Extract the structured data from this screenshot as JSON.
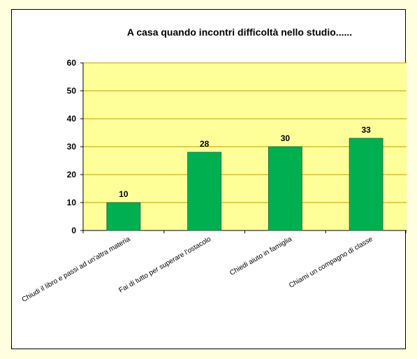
{
  "chart_data": {
    "type": "bar",
    "title": "A casa quando incontri difficoltà nello studio......",
    "xlabel": "",
    "ylabel": "",
    "categories": [
      "Chiudi il libro e passi ad un'altra materia",
      "Fai di tutto per superare l'ostacolo",
      "Chiedi aiuto in famiglia",
      "Chiami un compagno di classe"
    ],
    "values": [
      10,
      28,
      30,
      33
    ],
    "ylim": [
      0,
      60
    ],
    "yticks": [
      0,
      10,
      20,
      30,
      40,
      50,
      60
    ],
    "grid": true,
    "legend": "none",
    "colors": {
      "plot_background": "#ffff99",
      "bar_fill": "#00b050",
      "bar_stroke": "#1f5f3a",
      "gridline": "#b8a000",
      "page_background": "#ffffe0"
    }
  }
}
